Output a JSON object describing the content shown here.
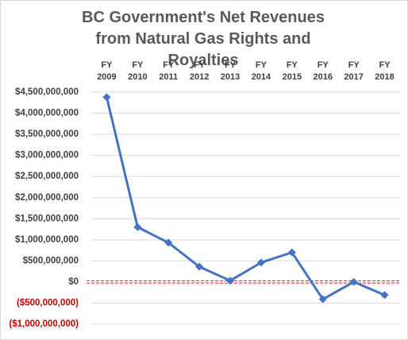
{
  "chart_data": {
    "type": "line",
    "title": "BC Government's Net Revenues from Natural Gas Rights and Royalties",
    "categories": [
      "FY 2009",
      "FY 2010",
      "FY 2011",
      "FY 2012",
      "FY 2013",
      "FY 2014",
      "FY 2015",
      "FY 2016",
      "FY 2017",
      "FY 2018"
    ],
    "series": [
      {
        "name": "Net Revenues",
        "color": "#4472c4",
        "values": [
          4380000000,
          1300000000,
          930000000,
          360000000,
          30000000,
          460000000,
          700000000,
          -410000000,
          0,
          -310000000
        ]
      }
    ],
    "ylim": [
      -1000000000,
      4500000000
    ],
    "yticks": [
      {
        "value": -1000000000,
        "label": "($1,000,000,000)"
      },
      {
        "value": -500000000,
        "label": "($500,000,000)"
      },
      {
        "value": 0,
        "label": "$0"
      },
      {
        "value": 500000000,
        "label": "$500,000,000"
      },
      {
        "value": 1000000000,
        "label": "$1,000,000,000"
      },
      {
        "value": 1500000000,
        "label": "$1,500,000,000"
      },
      {
        "value": 2000000000,
        "label": "$2,000,000,000"
      },
      {
        "value": 2500000000,
        "label": "$2,500,000,000"
      },
      {
        "value": 3000000000,
        "label": "$3,000,000,000"
      },
      {
        "value": 3500000000,
        "label": "$3,500,000,000"
      },
      {
        "value": 4000000000,
        "label": "$4,000,000,000"
      },
      {
        "value": 4500000000,
        "label": "$4,500,000,000"
      }
    ],
    "grid": true
  }
}
